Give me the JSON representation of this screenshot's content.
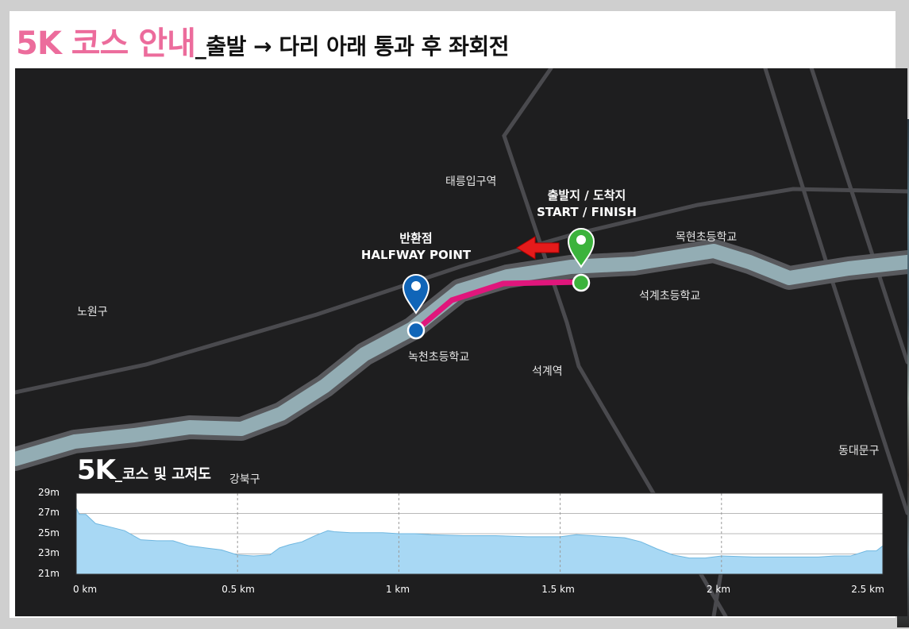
{
  "title": {
    "highlight": "5K 코스 안내",
    "rest": "_출발 → 다리 아래 통과 후 좌회전"
  },
  "map": {
    "places": {
      "taereung": "태릉입구역",
      "mokhyeon": "목현초등학교",
      "seokgye_school": "석계초등학교",
      "nowon": "노원구",
      "nokcheon": "녹천초등학교",
      "seokgye_station": "석계역",
      "dongdaemun": "동대문구",
      "gangbuk": "강북구"
    },
    "start": {
      "ko": "출발지 / 도착지",
      "en": "START / FINISH"
    },
    "halfway": {
      "ko": "반환점",
      "en": "HALFWAY POINT"
    },
    "colors": {
      "route": "#e0167c",
      "river": "#93adb4",
      "start_pin": "#3cb33c",
      "halfway_pin": "#1065b8",
      "arrow": "#e51b1b",
      "road": "#4a4a4e"
    }
  },
  "elevation": {
    "title_big": "5K",
    "title_small": "_코스 및 고저도",
    "chart_data": {
      "type": "area",
      "title": "5K_코스 및 고저도",
      "xlabel": "",
      "ylabel": "",
      "x_tick_labels": [
        "0 km",
        "0.5 km",
        "1 km",
        "1.5 km",
        "2 km",
        "2.5 km"
      ],
      "y_tick_labels": [
        "29m",
        "27m",
        "25m",
        "23m",
        "21m"
      ],
      "xlim": [
        0,
        2.5
      ],
      "ylim": [
        21,
        29
      ],
      "grid": "horizontal solid, vertical dashed",
      "fill_color": "#a8d8f4",
      "series": [
        {
          "x": [
            0,
            0.01,
            0.03,
            0.06,
            0.1,
            0.15,
            0.2,
            0.25,
            0.3,
            0.35,
            0.4,
            0.45,
            0.5,
            0.55,
            0.6,
            0.63,
            0.66,
            0.7,
            0.74,
            0.78,
            0.8,
            0.85,
            0.9,
            0.95,
            1.0,
            1.05,
            1.1,
            1.2,
            1.3,
            1.4,
            1.45,
            1.5,
            1.55,
            1.6,
            1.65,
            1.7,
            1.75,
            1.8,
            1.85,
            1.9,
            1.95,
            2.0,
            2.1,
            2.2,
            2.3,
            2.35,
            2.4,
            2.45,
            2.48,
            2.5
          ],
          "y": [
            27.5,
            26.9,
            26.9,
            26.0,
            25.7,
            25.3,
            24.4,
            24.3,
            24.3,
            23.8,
            23.6,
            23.4,
            22.9,
            22.8,
            22.9,
            23.6,
            23.9,
            24.2,
            24.8,
            25.3,
            25.2,
            25.1,
            25.1,
            25.1,
            25.0,
            25.0,
            24.9,
            24.8,
            24.8,
            24.7,
            24.7,
            24.7,
            24.9,
            24.8,
            24.7,
            24.6,
            24.2,
            23.5,
            22.9,
            22.6,
            22.6,
            22.8,
            22.7,
            22.7,
            22.7,
            22.8,
            22.8,
            23.3,
            23.3,
            23.8
          ]
        }
      ]
    }
  }
}
